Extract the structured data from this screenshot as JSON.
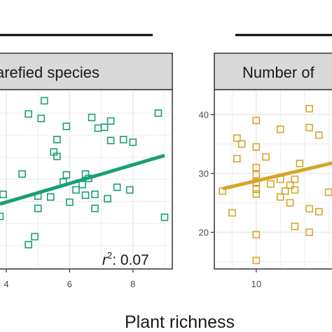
{
  "shared_xlabel": "Plant richness",
  "chart_data": [
    {
      "type": "scatter",
      "title": "arefied species",
      "xlabel": "",
      "ylabel": "",
      "xlim": [
        3.8,
        9.2
      ],
      "ylim": [
        0,
        1
      ],
      "x_ticks": [
        4,
        6,
        8
      ],
      "y_ticks": [],
      "grid": true,
      "color": "#1a9e77",
      "annotation": {
        "prefix": "r",
        "superscript": "2",
        "value": ": 0.07"
      },
      "fit_line": {
        "x": [
          3.8,
          9.0
        ],
        "y": [
          0.36,
          0.635
        ]
      },
      "points": [
        {
          "x": 5.2,
          "y": 0.945
        },
        {
          "x": 4.7,
          "y": 0.87
        },
        {
          "x": 8.8,
          "y": 0.875
        },
        {
          "x": 5.1,
          "y": 0.845
        },
        {
          "x": 6.7,
          "y": 0.85
        },
        {
          "x": 7.3,
          "y": 0.83
        },
        {
          "x": 5.9,
          "y": 0.8
        },
        {
          "x": 6.9,
          "y": 0.79
        },
        {
          "x": 7.1,
          "y": 0.795
        },
        {
          "x": 5.6,
          "y": 0.725
        },
        {
          "x": 7.7,
          "y": 0.725
        },
        {
          "x": 7.3,
          "y": 0.72
        },
        {
          "x": 8.0,
          "y": 0.71
        },
        {
          "x": 5.5,
          "y": 0.655
        },
        {
          "x": 5.6,
          "y": 0.63
        },
        {
          "x": 4.5,
          "y": 0.53
        },
        {
          "x": 5.9,
          "y": 0.525
        },
        {
          "x": 6.5,
          "y": 0.53
        },
        {
          "x": 6.6,
          "y": 0.505
        },
        {
          "x": 5.8,
          "y": 0.485
        },
        {
          "x": 6.4,
          "y": 0.47
        },
        {
          "x": 7.5,
          "y": 0.455
        },
        {
          "x": 6.2,
          "y": 0.44
        },
        {
          "x": 7.9,
          "y": 0.44
        },
        {
          "x": 3.9,
          "y": 0.415
        },
        {
          "x": 5.0,
          "y": 0.405
        },
        {
          "x": 5.4,
          "y": 0.4
        },
        {
          "x": 6.5,
          "y": 0.41
        },
        {
          "x": 6.8,
          "y": 0.415
        },
        {
          "x": 7.2,
          "y": 0.39
        },
        {
          "x": 6.0,
          "y": 0.37
        },
        {
          "x": 5.0,
          "y": 0.335
        },
        {
          "x": 6.8,
          "y": 0.335
        },
        {
          "x": 3.8,
          "y": 0.29
        },
        {
          "x": 9.0,
          "y": 0.285
        },
        {
          "x": 4.9,
          "y": 0.175
        },
        {
          "x": 4.7,
          "y": 0.13
        }
      ]
    },
    {
      "type": "scatter",
      "title": "Number of",
      "xlabel": "",
      "ylabel": "",
      "xlim": [
        5.8,
        18
      ],
      "ylim": [
        14,
        44
      ],
      "x_ticks": [
        10
      ],
      "y_ticks": [
        20,
        30,
        40
      ],
      "grid": true,
      "color": "#d4a52a",
      "fit_line": {
        "x": [
          6.5,
          18
        ],
        "y": [
          27.4,
          31.8
        ]
      },
      "points": [
        {
          "x": 15.5,
          "y": 41.0
        },
        {
          "x": 10.0,
          "y": 39.0
        },
        {
          "x": 12.5,
          "y": 37.5
        },
        {
          "x": 15.5,
          "y": 37.8
        },
        {
          "x": 8.0,
          "y": 36.0
        },
        {
          "x": 10.0,
          "y": 34.5
        },
        {
          "x": 16.5,
          "y": 36.5
        },
        {
          "x": 8.5,
          "y": 35.0
        },
        {
          "x": 11.0,
          "y": 32.8
        },
        {
          "x": 8.0,
          "y": 32.5
        },
        {
          "x": 10.0,
          "y": 31.0
        },
        {
          "x": 14.5,
          "y": 31.7
        },
        {
          "x": 10.0,
          "y": 29.8
        },
        {
          "x": 10.0,
          "y": 28.5
        },
        {
          "x": 14.0,
          "y": 29.0
        },
        {
          "x": 12.5,
          "y": 29.0
        },
        {
          "x": 13.5,
          "y": 28.0
        },
        {
          "x": 11.5,
          "y": 28.2
        },
        {
          "x": 10.0,
          "y": 27.3
        },
        {
          "x": 13.0,
          "y": 27.0
        },
        {
          "x": 14.0,
          "y": 27.2
        },
        {
          "x": 6.5,
          "y": 27.0
        },
        {
          "x": 17.5,
          "y": 26.8
        },
        {
          "x": 10.0,
          "y": 26.5
        },
        {
          "x": 12.5,
          "y": 26.0
        },
        {
          "x": 13.5,
          "y": 25.0
        },
        {
          "x": 7.5,
          "y": 23.3
        },
        {
          "x": 15.5,
          "y": 24.0
        },
        {
          "x": 16.5,
          "y": 23.5
        },
        {
          "x": 14.0,
          "y": 21.0
        },
        {
          "x": 10.0,
          "y": 19.6
        },
        {
          "x": 15.5,
          "y": 20.0
        },
        {
          "x": 10.0,
          "y": 15.2
        }
      ]
    }
  ]
}
